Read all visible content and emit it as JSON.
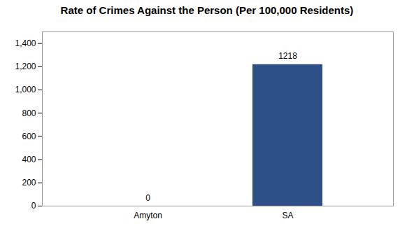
{
  "chart_data": {
    "type": "bar",
    "title": "Rate of Crimes Against the Person (Per 100,000 Residents)",
    "categories": [
      "Amyton",
      "SA"
    ],
    "values": [
      0,
      1218
    ],
    "color": "#2e5088",
    "ylim": [
      0,
      1500
    ],
    "yticks": [
      0,
      200,
      400,
      600,
      800,
      1000,
      1200,
      1400
    ],
    "grid": false,
    "data_labels": true
  }
}
